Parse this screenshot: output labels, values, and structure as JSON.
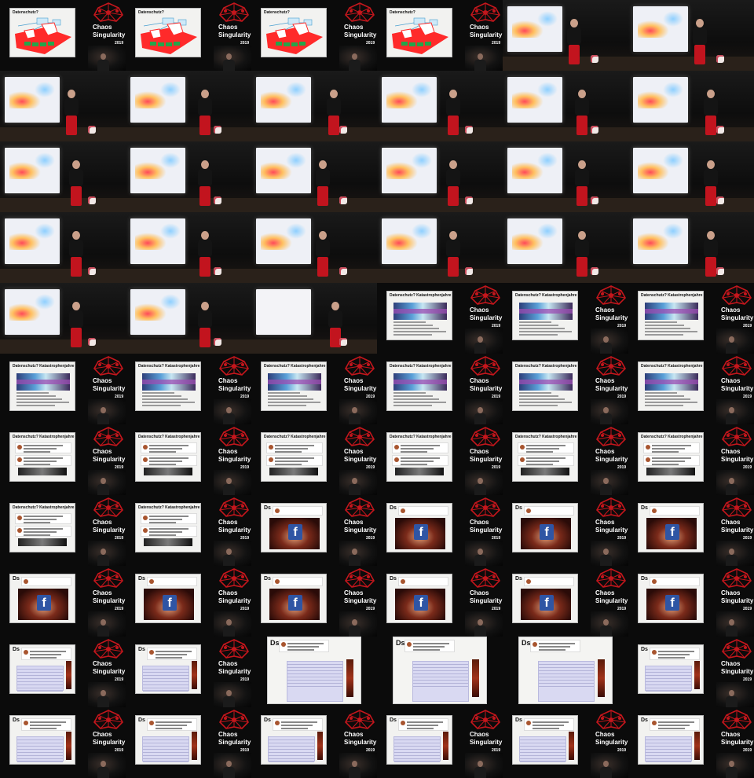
{
  "sheet": {
    "columns": 6,
    "rows": 11,
    "brand": {
      "line1": "Chaos",
      "line2": "Singularity",
      "year": "2019"
    },
    "slide_titles": {
      "datenschutz": "Datenschutz?",
      "katastrophenjahre": "Datenschutz? Katastrophenjahre",
      "ds": "Ds"
    },
    "facebook_glyph": "f",
    "colors": {
      "background": "#000000",
      "logo_red": "#c4161c",
      "presenter_pants": "#c2141e",
      "facebook_blue": "#2f55a4"
    },
    "thumbnails": [
      {
        "kind": "card",
        "slide": "diagram",
        "title_key": "datenschutz"
      },
      {
        "kind": "card",
        "slide": "diagram",
        "title_key": "datenschutz"
      },
      {
        "kind": "card",
        "slide": "diagram",
        "title_key": "datenschutz"
      },
      {
        "kind": "card",
        "slide": "diagram",
        "title_key": "datenschutz"
      },
      {
        "kind": "stage",
        "pose": "point"
      },
      {
        "kind": "stage",
        "pose": "point"
      },
      {
        "kind": "stage",
        "pose": "point"
      },
      {
        "kind": "stage",
        "pose": "gesture"
      },
      {
        "kind": "stage",
        "pose": "stand"
      },
      {
        "kind": "stage",
        "pose": "stand"
      },
      {
        "kind": "stage",
        "pose": "stand"
      },
      {
        "kind": "stage",
        "pose": "stand"
      },
      {
        "kind": "stage",
        "pose": "stand"
      },
      {
        "kind": "stage",
        "pose": "stand"
      },
      {
        "kind": "stage",
        "pose": "point"
      },
      {
        "kind": "stage",
        "pose": "stand"
      },
      {
        "kind": "stage",
        "pose": "stand"
      },
      {
        "kind": "stage",
        "pose": "gesture"
      },
      {
        "kind": "stage",
        "pose": "stand"
      },
      {
        "kind": "stage",
        "pose": "gesture"
      },
      {
        "kind": "stage",
        "pose": "point"
      },
      {
        "kind": "stage",
        "pose": "stand"
      },
      {
        "kind": "stage",
        "pose": "stand"
      },
      {
        "kind": "stage",
        "pose": "stand"
      },
      {
        "kind": "stage",
        "pose": "stand"
      },
      {
        "kind": "stage",
        "pose": "gesture"
      },
      {
        "kind": "stage",
        "pose": "blank"
      },
      {
        "kind": "card",
        "slide": "screenshot",
        "title_key": "katastrophenjahre"
      },
      {
        "kind": "card",
        "slide": "screenshot",
        "title_key": "katastrophenjahre"
      },
      {
        "kind": "card",
        "slide": "screenshot",
        "title_key": "katastrophenjahre"
      },
      {
        "kind": "card",
        "slide": "screenshot",
        "title_key": "katastrophenjahre"
      },
      {
        "kind": "card",
        "slide": "screenshot",
        "title_key": "katastrophenjahre"
      },
      {
        "kind": "card",
        "slide": "screenshot",
        "title_key": "katastrophenjahre"
      },
      {
        "kind": "card",
        "slide": "screenshot",
        "title_key": "katastrophenjahre"
      },
      {
        "kind": "card",
        "slide": "screenshot",
        "title_key": "katastrophenjahre"
      },
      {
        "kind": "card",
        "slide": "screenshot",
        "title_key": "katastrophenjahre"
      },
      {
        "kind": "card",
        "slide": "tweets",
        "title_key": "katastrophenjahre"
      },
      {
        "kind": "card",
        "slide": "tweets",
        "title_key": "katastrophenjahre"
      },
      {
        "kind": "card",
        "slide": "tweets",
        "title_key": "katastrophenjahre"
      },
      {
        "kind": "card",
        "slide": "tweets",
        "title_key": "katastrophenjahre"
      },
      {
        "kind": "card",
        "slide": "tweets",
        "title_key": "katastrophenjahre"
      },
      {
        "kind": "card",
        "slide": "tweets",
        "title_key": "katastrophenjahre"
      },
      {
        "kind": "card",
        "slide": "tweets",
        "title_key": "katastrophenjahre"
      },
      {
        "kind": "card",
        "slide": "tweets",
        "title_key": "katastrophenjahre"
      },
      {
        "kind": "card",
        "slide": "facebook",
        "title_key": "ds"
      },
      {
        "kind": "card",
        "slide": "facebook",
        "title_key": "ds"
      },
      {
        "kind": "card",
        "slide": "facebook",
        "title_key": "ds"
      },
      {
        "kind": "card",
        "slide": "facebook",
        "title_key": "ds"
      },
      {
        "kind": "card",
        "slide": "facebook",
        "title_key": "ds"
      },
      {
        "kind": "card",
        "slide": "facebook",
        "title_key": "ds"
      },
      {
        "kind": "card",
        "slide": "facebook",
        "title_key": "ds"
      },
      {
        "kind": "card",
        "slide": "facebook",
        "title_key": "ds"
      },
      {
        "kind": "card",
        "slide": "facebook",
        "title_key": "ds"
      },
      {
        "kind": "card",
        "slide": "facebook",
        "title_key": "ds"
      },
      {
        "kind": "card",
        "slide": "table",
        "title_key": "ds"
      },
      {
        "kind": "card",
        "slide": "table",
        "title_key": "ds"
      },
      {
        "kind": "big",
        "slide": "table",
        "title_key": "ds"
      },
      {
        "kind": "big",
        "slide": "table",
        "title_key": "ds"
      },
      {
        "kind": "big",
        "slide": "table",
        "title_key": "ds"
      },
      {
        "kind": "card",
        "slide": "table",
        "title_key": "ds"
      },
      {
        "kind": "card",
        "slide": "table",
        "title_key": "ds"
      },
      {
        "kind": "card",
        "slide": "table",
        "title_key": "ds"
      },
      {
        "kind": "card",
        "slide": "table",
        "title_key": "ds"
      },
      {
        "kind": "card",
        "slide": "table",
        "title_key": "ds"
      },
      {
        "kind": "card",
        "slide": "table",
        "title_key": "ds"
      },
      {
        "kind": "card",
        "slide": "table",
        "title_key": "ds"
      }
    ]
  }
}
